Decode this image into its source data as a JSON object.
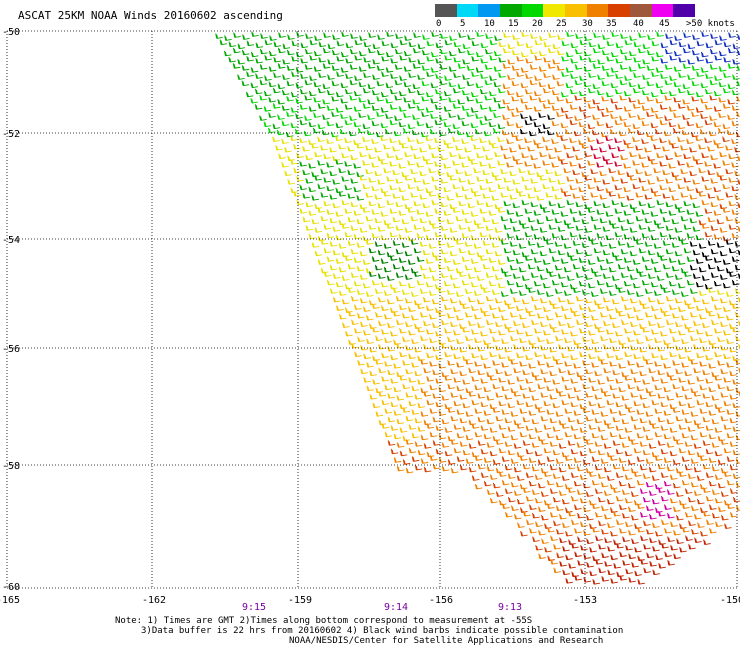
{
  "title": "ASCAT 25KM NOAA Winds 20160602 ascending",
  "colorbar": {
    "labels": [
      "0",
      "5",
      "10",
      "15",
      "20",
      "25",
      "30",
      "35",
      "40",
      "45",
      ">50 knots"
    ],
    "colors": [
      "#555555",
      "#00d8f8",
      "#0098f0",
      "#00a800",
      "#00d800",
      "#f0e800",
      "#f8c000",
      "#f08000",
      "#d84000",
      "#a0583c",
      "#f000f0",
      "#5000a8"
    ]
  },
  "map": {
    "lat_labels": [
      "-50",
      "-52",
      "-54",
      "-56",
      "-58",
      "-60"
    ],
    "lon_labels": [
      "-165",
      "-162",
      "-159",
      "-156",
      "-153",
      "-150"
    ],
    "times": [
      "9:15",
      "9:14",
      "9:13"
    ],
    "time_color": "#7800a0"
  },
  "notes": {
    "line1": "Note: 1) Times are GMT 2)Times along bottom correspond to measurement at -55S",
    "line2": "3)Data buffer is 22 hrs from 20160602 4) Black wind barbs indicate possible contamination",
    "line3": "NOAA/NESDIS/Center for Satellite Applications and Research"
  }
}
